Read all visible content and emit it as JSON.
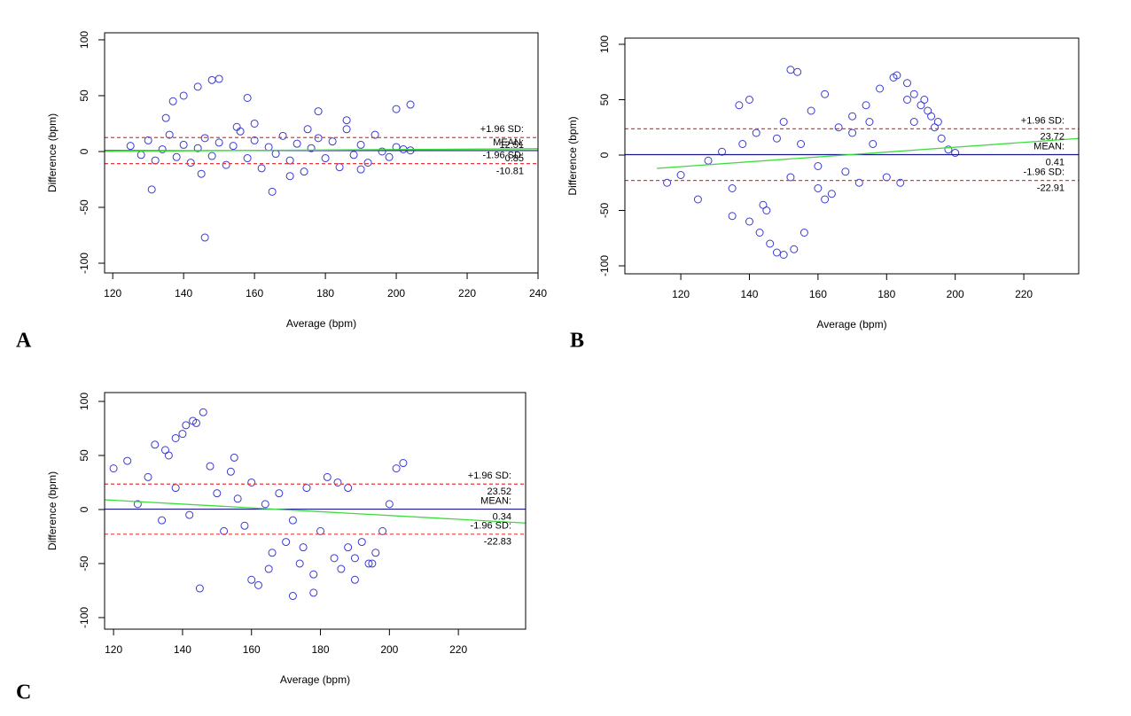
{
  "chart_data": [
    {
      "type": "scatter",
      "panel_label": "A",
      "xlabel": "Average (bpm)",
      "ylabel": "Difference (bpm)",
      "xlim": [
        117.7,
        240
      ],
      "ylim": [
        -108.7,
        106.3
      ],
      "xticks": [
        120,
        140,
        160,
        180,
        200,
        220,
        240
      ],
      "yticks": [
        -100,
        -50,
        0,
        50,
        100
      ],
      "x": [
        125,
        128,
        130,
        132,
        134,
        136,
        138,
        140,
        142,
        144,
        146,
        148,
        150,
        152,
        154,
        156,
        158,
        160,
        162,
        164,
        166,
        168,
        170,
        172,
        174,
        176,
        178,
        180,
        182,
        184,
        186,
        188,
        190,
        192,
        194,
        196,
        198,
        200,
        202,
        204,
        131,
        146,
        148,
        150,
        144,
        140,
        137,
        158,
        165,
        178,
        200,
        204,
        135,
        186,
        160,
        170,
        155,
        145,
        175,
        190
      ],
      "y": [
        5,
        -3,
        10,
        -8,
        2,
        15,
        -5,
        6,
        -10,
        3,
        12,
        -4,
        8,
        -12,
        5,
        18,
        -6,
        10,
        -15,
        4,
        -2,
        14,
        -8,
        7,
        -18,
        3,
        12,
        -6,
        9,
        -14,
        20,
        -3,
        6,
        -10,
        15,
        0,
        -5,
        4,
        2,
        1,
        -34,
        -77,
        64,
        65,
        58,
        50,
        45,
        48,
        -36,
        36,
        38,
        42,
        30,
        28,
        25,
        -22,
        22,
        -20,
        20,
        -16
      ],
      "point_color": "#3a3ad0",
      "upper_label": "+1.96 SD:",
      "upper": 12.51,
      "mean_label": "MEAN:",
      "mean": 0.85,
      "lower_label": "-1.96 SD:",
      "lower": -10.81,
      "mean_color": "#1a1a8c",
      "limit_color": "#e8383a",
      "trend_x": [
        117.7,
        240
      ],
      "trend_y": [
        0.2,
        2.5
      ],
      "trend_color": "#3ddc3d"
    },
    {
      "type": "scatter",
      "panel_label": "B",
      "xlabel": "Average (bpm)",
      "ylabel": "Difference (bpm)",
      "xlim": [
        103.7,
        236
      ],
      "ylim": [
        -107.2,
        105.6
      ],
      "xticks": [
        120,
        140,
        160,
        180,
        200,
        220
      ],
      "yticks": [
        -100,
        -50,
        0,
        50,
        100
      ],
      "x": [
        116,
        120,
        125,
        128,
        132,
        135,
        138,
        140,
        142,
        144,
        146,
        148,
        150,
        152,
        154,
        156,
        158,
        160,
        162,
        164,
        166,
        168,
        170,
        172,
        174,
        176,
        178,
        180,
        182,
        184,
        186,
        188,
        190,
        192,
        194,
        196,
        198,
        200,
        137,
        140,
        143,
        145,
        148,
        150,
        153,
        155,
        160,
        162,
        170,
        175,
        183,
        186,
        188,
        191,
        193,
        195,
        135,
        152
      ],
      "y": [
        -25,
        -18,
        -40,
        -5,
        3,
        -30,
        10,
        -60,
        20,
        -45,
        -80,
        15,
        -90,
        -20,
        75,
        -70,
        40,
        -10,
        55,
        -35,
        25,
        -15,
        35,
        -25,
        45,
        10,
        60,
        -20,
        70,
        -25,
        50,
        30,
        45,
        40,
        25,
        15,
        5,
        2,
        45,
        50,
        -70,
        -50,
        -88,
        30,
        -85,
        10,
        -30,
        -40,
        20,
        30,
        72,
        65,
        55,
        50,
        35,
        30,
        -55,
        77
      ],
      "point_color": "#3a3ad0",
      "upper_label": "+1.96 SD:",
      "upper": 23.72,
      "mean_label": "MEAN:",
      "mean": 0.41,
      "lower_label": "-1.96 SD:",
      "lower": -22.91,
      "mean_color": "#1a1a8c",
      "limit_color": "#e8383a",
      "trend_x": [
        113,
        236
      ],
      "trend_y": [
        -12,
        15
      ],
      "trend_color": "#3ddc3d"
    },
    {
      "type": "scatter",
      "panel_label": "C",
      "xlabel": "Average (bpm)",
      "ylabel": "Difference (bpm)",
      "xlim": [
        117.4,
        239.5
      ],
      "ylim": [
        -110.7,
        108.2
      ],
      "xticks": [
        120,
        140,
        160,
        180,
        200,
        220
      ],
      "yticks": [
        -100,
        -50,
        0,
        50,
        100
      ],
      "x": [
        120,
        124,
        127,
        130,
        132,
        134,
        136,
        138,
        140,
        142,
        144,
        146,
        148,
        150,
        152,
        154,
        156,
        158,
        160,
        162,
        164,
        166,
        168,
        170,
        172,
        174,
        176,
        178,
        180,
        182,
        184,
        186,
        188,
        190,
        192,
        194,
        196,
        198,
        200,
        202,
        204,
        145,
        143,
        141,
        138,
        135,
        160,
        165,
        172,
        178,
        190,
        195,
        185,
        188,
        155,
        175
      ],
      "y": [
        38,
        45,
        5,
        30,
        60,
        -10,
        50,
        20,
        70,
        -5,
        80,
        90,
        40,
        15,
        -20,
        35,
        10,
        -15,
        25,
        -70,
        5,
        -40,
        15,
        -30,
        -10,
        -50,
        20,
        -60,
        -20,
        30,
        -45,
        -55,
        -35,
        -45,
        -30,
        -50,
        -40,
        -20,
        5,
        38,
        43,
        -73,
        82,
        78,
        66,
        55,
        -65,
        -55,
        -80,
        -77,
        -65,
        -50,
        25,
        20,
        48,
        -35
      ],
      "point_color": "#3a3ad0",
      "upper_label": "+1.96 SD:",
      "upper": 23.52,
      "mean_label": "MEAN:",
      "mean": 0.34,
      "lower_label": "-1.96 SD:",
      "lower": -22.83,
      "mean_color": "#1a1a8c",
      "limit_color": "#e8383a",
      "trend_x": [
        117.4,
        239.5
      ],
      "trend_y": [
        9,
        -12.5
      ],
      "trend_color": "#3ddc3d"
    }
  ]
}
